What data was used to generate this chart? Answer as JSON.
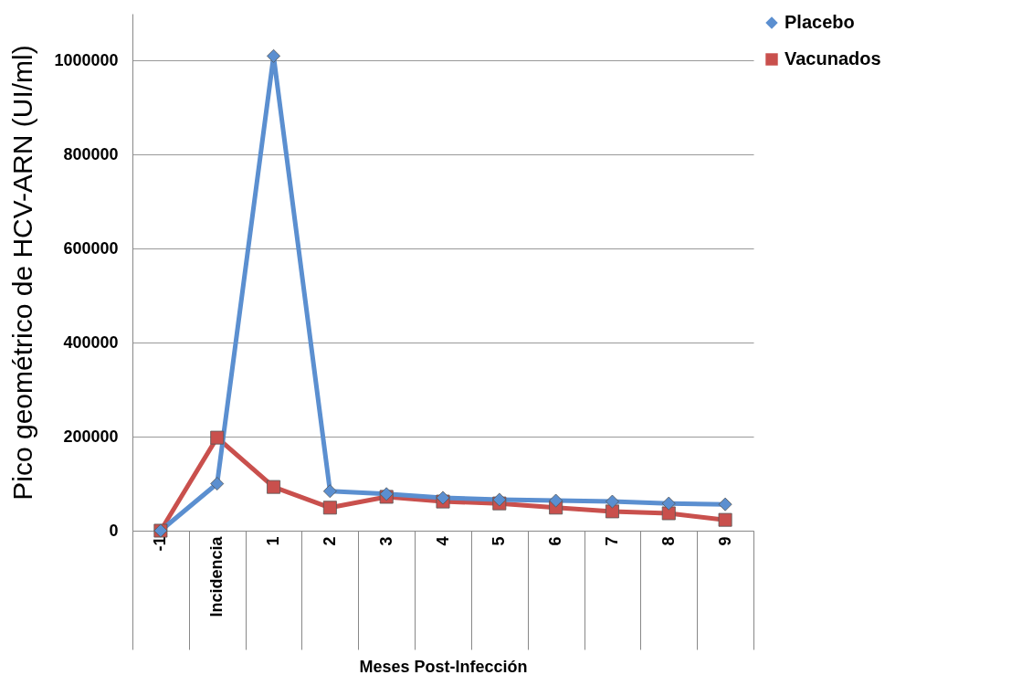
{
  "chart_data": {
    "type": "line",
    "xlabel": "Meses Post-Infección",
    "ylabel": "Pico geométrico de HCV-ARN  (UI/ml)",
    "categories": [
      "-1",
      "Incidencia",
      "1",
      "2",
      "3",
      "4",
      "5",
      "6",
      "7",
      "8",
      "9"
    ],
    "series": [
      {
        "name": "Placebo",
        "color": "#5b8fd0",
        "marker": "diamond",
        "values": [
          0,
          100000,
          1010000,
          84000,
          78000,
          70000,
          66000,
          64000,
          62000,
          58000,
          56000
        ]
      },
      {
        "name": "Vacunados",
        "color": "#c9504d",
        "marker": "square",
        "values": [
          0,
          198000,
          93000,
          49000,
          72000,
          62000,
          58000,
          49000,
          41000,
          37000,
          23000
        ]
      }
    ],
    "ylim": [
      0,
      1100000
    ],
    "yticks": [
      0,
      200000,
      400000,
      600000,
      800000,
      1000000
    ],
    "grid": "y",
    "legend": "right",
    "line_style": "solid"
  }
}
